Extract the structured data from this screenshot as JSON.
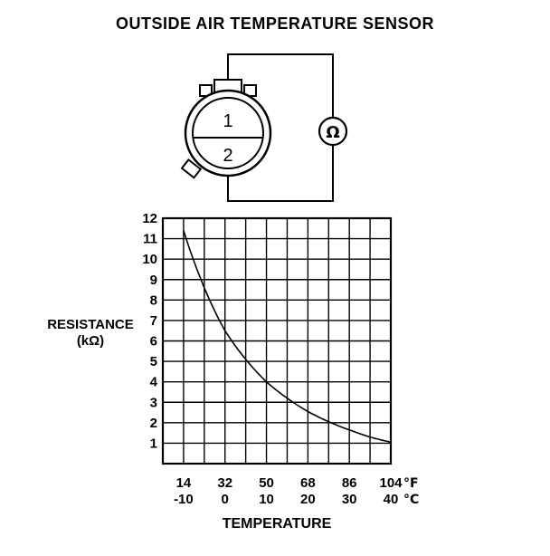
{
  "title": "OUTSIDE AIR TEMPERATURE SENSOR",
  "colors": {
    "ink": "#000000",
    "background": "#ffffff"
  },
  "diagram": {
    "name": "sensor-and-ohmmeter-circuit",
    "pin1_label": "1",
    "pin2_label": "2",
    "ohmmeter_symbol": "Ω"
  },
  "chart_data": {
    "type": "line",
    "title": "",
    "xlabel": "TEMPERATURE",
    "ylabel": "RESISTANCE (kΩ)",
    "ylabel_line1": "RESISTANCE",
    "ylabel_line2": "(kΩ)",
    "grid": true,
    "x_axis": {
      "range_f": [
        5,
        104
      ],
      "gridline_step_f": 9,
      "unit_rows": [
        {
          "unit": "°F",
          "ticks": [
            14,
            32,
            50,
            68,
            86,
            104
          ]
        },
        {
          "unit": "°C",
          "ticks": [
            -10,
            0,
            10,
            20,
            30,
            40
          ]
        }
      ]
    },
    "y_axis": {
      "range": [
        0,
        12
      ],
      "ticks": [
        12,
        11,
        10,
        9,
        8,
        7,
        6,
        5,
        4,
        3,
        2,
        1
      ]
    },
    "series": [
      {
        "name": "thermistor-resistance",
        "x_f": [
          14,
          23,
          32,
          41,
          50,
          59,
          68,
          77,
          86,
          95,
          104
        ],
        "x_c": [
          -10,
          -5,
          0,
          5,
          10,
          15,
          20,
          25,
          30,
          35,
          40
        ],
        "y_kohm": [
          11.4,
          8.6,
          6.5,
          5.1,
          4.0,
          3.2,
          2.55,
          2.05,
          1.65,
          1.3,
          1.05
        ]
      }
    ]
  }
}
